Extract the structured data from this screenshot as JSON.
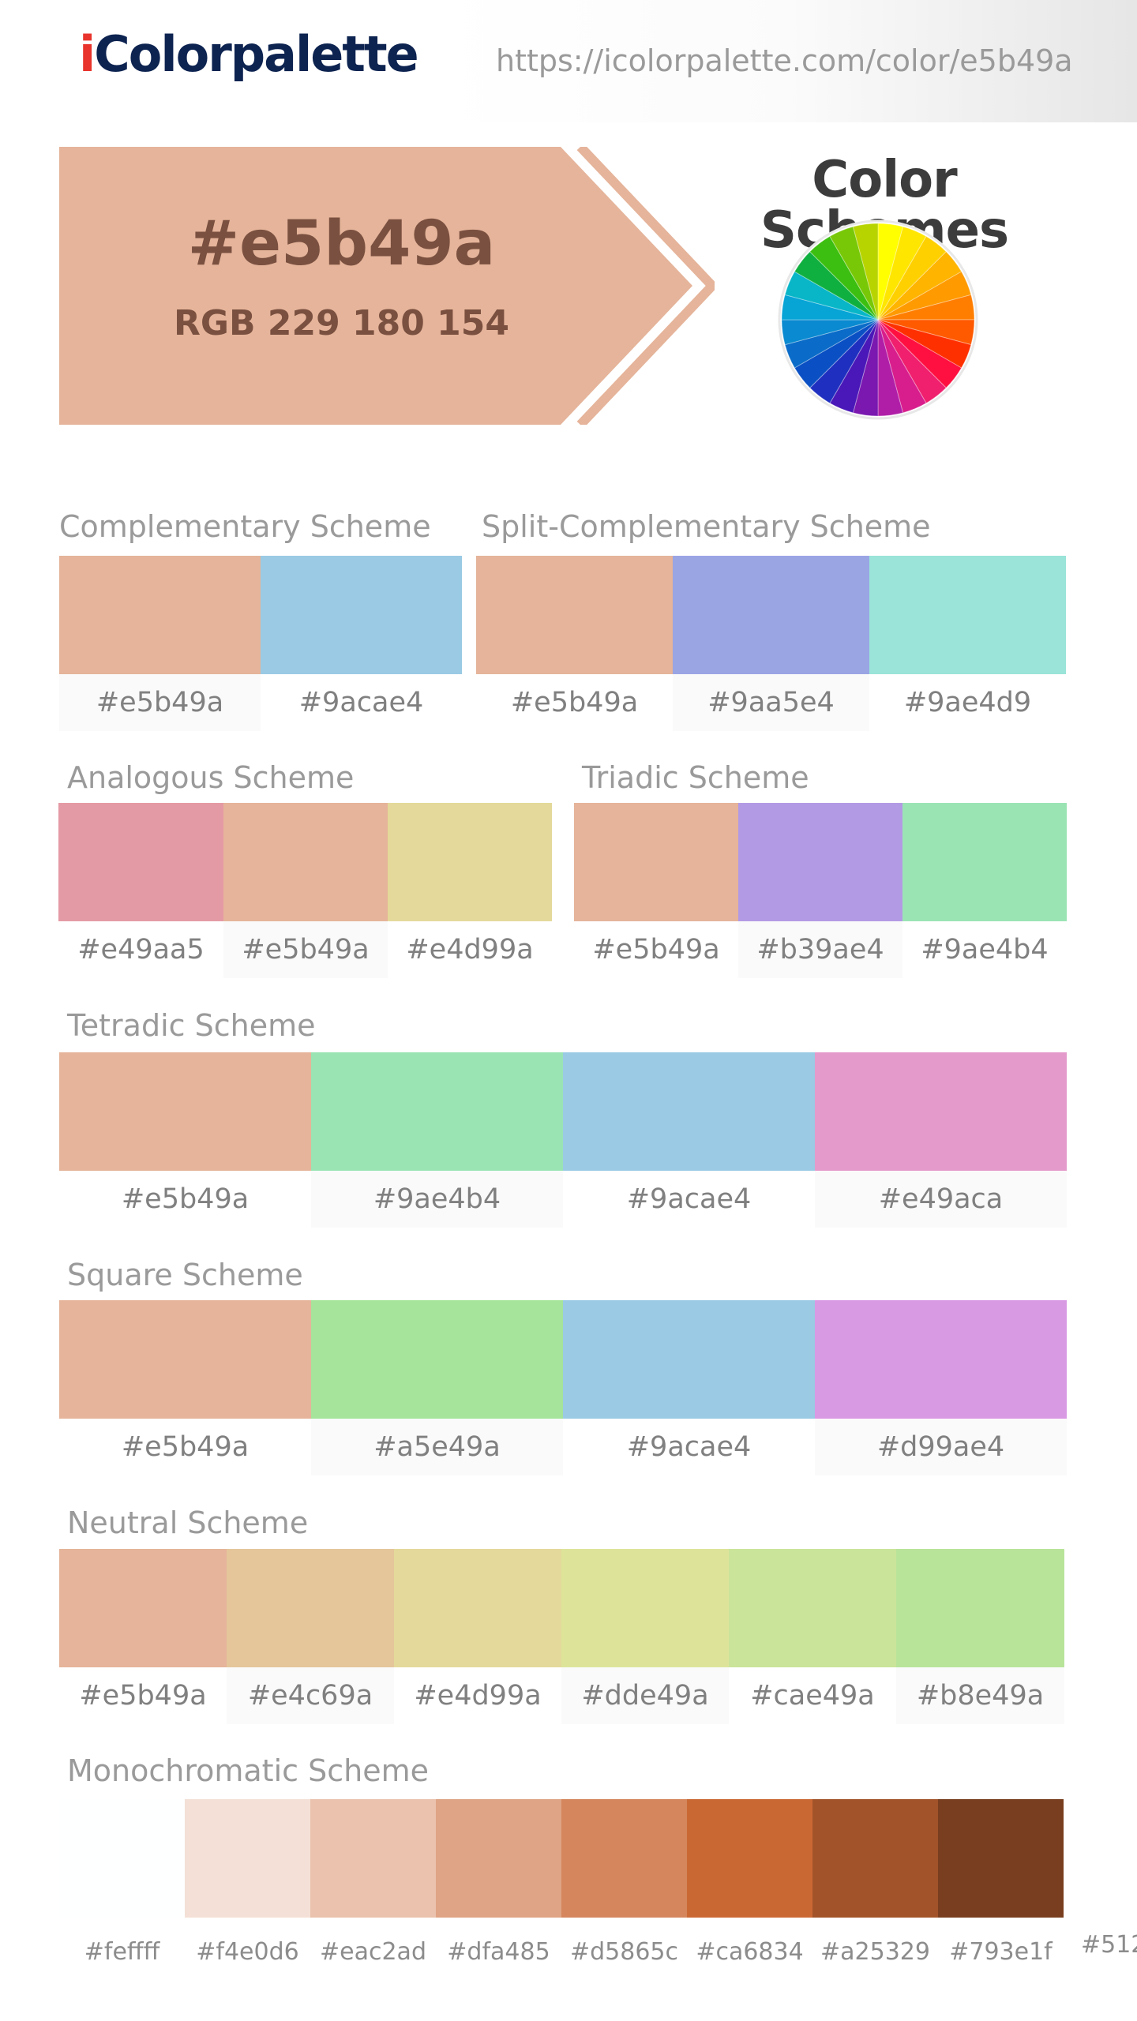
{
  "header": {
    "logo_i": "i",
    "logo_rest": "Colorpalette",
    "url": "https://icolorpalette.com/color/e5b49a"
  },
  "hero": {
    "hex": "#e5b49a",
    "rgb": "RGB 229 180 154",
    "color": "#e5b49a"
  },
  "schemes_heading": "Color Schemes",
  "wheel_icon": "color-wheel-icon",
  "sections": {
    "complementary": {
      "label": "Complementary Scheme",
      "colors": [
        "#e5b49a",
        "#9acae4"
      ]
    },
    "split_complementary": {
      "label": "Split-Complementary Scheme",
      "colors": [
        "#e5b49a",
        "#9aa5e4",
        "#9ae4d9"
      ]
    },
    "analogous": {
      "label": "Analogous Scheme",
      "colors": [
        "#e49aa5",
        "#e5b49a",
        "#e4d99a"
      ]
    },
    "triadic": {
      "label": "Triadic Scheme",
      "colors": [
        "#e5b49a",
        "#b39ae4",
        "#9ae4b4"
      ]
    },
    "tetradic": {
      "label": "Tetradic Scheme",
      "colors": [
        "#e5b49a",
        "#9ae4b4",
        "#9acae4",
        "#e49aca"
      ]
    },
    "square": {
      "label": "Square Scheme",
      "colors": [
        "#e5b49a",
        "#a5e49a",
        "#9acae4",
        "#d99ae4"
      ]
    },
    "neutral": {
      "label": "Neutral Scheme",
      "colors": [
        "#e5b49a",
        "#e4c69a",
        "#e4d99a",
        "#dde49a",
        "#cae49a",
        "#b8e49a"
      ]
    },
    "monochromatic": {
      "label": "Monochromatic Scheme",
      "colors": [
        "#feffff",
        "#f4e0d6",
        "#eac2ad",
        "#dfa485",
        "#d5865c",
        "#ca6834",
        "#a25329",
        "#793e1f"
      ],
      "clipped_label": "#512"
    }
  }
}
